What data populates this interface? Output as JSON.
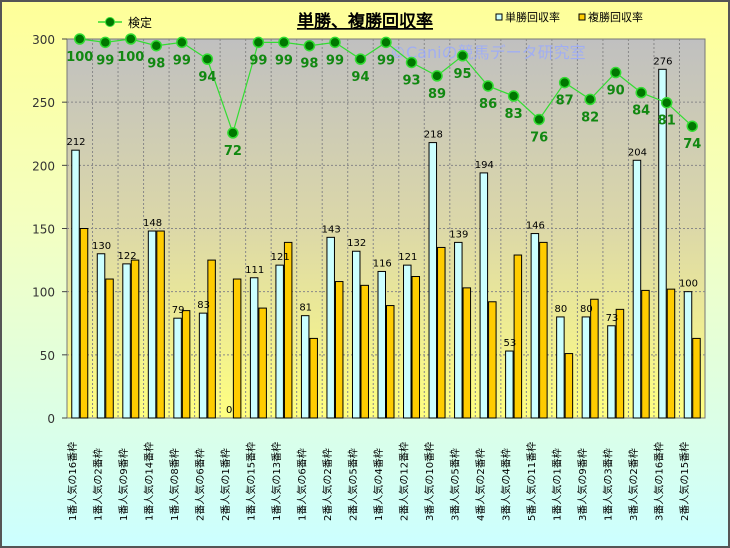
{
  "chart_data": {
    "type": "bar",
    "title": "単勝、複勝回収率",
    "watermark": "©Caniの競馬データ研究室",
    "categories": [
      "1番人気の16番枠",
      "1番人気の2番枠",
      "1番人気の9番枠",
      "1番人気の14番枠",
      "1番人気の8番枠",
      "2番人気の6番枠",
      "2番人気の1番枠",
      "1番人気の15番枠",
      "1番人気の13番枠",
      "1番人気の6番枠",
      "2番人気の2番枠",
      "2番人気の5番枠",
      "1番人気の4番枠",
      "2番人気の12番枠",
      "3番人気の10番枠",
      "3番人気の5番枠",
      "4番人気の2番枠",
      "3番人気の4番枠",
      "5番人気の11番枠",
      "1番人気の1番枠",
      "3番人気の9番枠",
      "1番人気の3番枠",
      "3番人気の2番枠",
      "3番人気の16番枠",
      "2番人気の15番枠"
    ],
    "series": [
      {
        "name": "単勝回収率",
        "color": "#ccffff",
        "values": [
          212,
          130,
          122,
          148,
          79,
          83,
          0,
          111,
          121,
          81,
          143,
          132,
          116,
          121,
          218,
          139,
          194,
          53,
          146,
          80,
          80,
          73,
          204,
          276,
          100
        ]
      },
      {
        "name": "複勝回収率",
        "color": "#ffcc00",
        "values": [
          150,
          110,
          125,
          148,
          85,
          125,
          110,
          87,
          139,
          63,
          108,
          105,
          89,
          112,
          135,
          103,
          92,
          129,
          139,
          51,
          94,
          86,
          101,
          102,
          63
        ]
      },
      {
        "name": "検定",
        "type": "line",
        "axis": "secondary",
        "color": "#33dd33",
        "marker_color": "#007700",
        "values": [
          100,
          99,
          100,
          98,
          99,
          94,
          72,
          99,
          99,
          98,
          99,
          94,
          99,
          93,
          89,
          95,
          86,
          83,
          76,
          87,
          82,
          90,
          84,
          81,
          74
        ]
      }
    ],
    "ylim": [
      0,
      300
    ],
    "yticks": [
      "0",
      "50",
      "100",
      "150",
      "200",
      "250",
      "300"
    ],
    "ylim2": [
      -13,
      100
    ],
    "grid": true,
    "legend": "top"
  }
}
